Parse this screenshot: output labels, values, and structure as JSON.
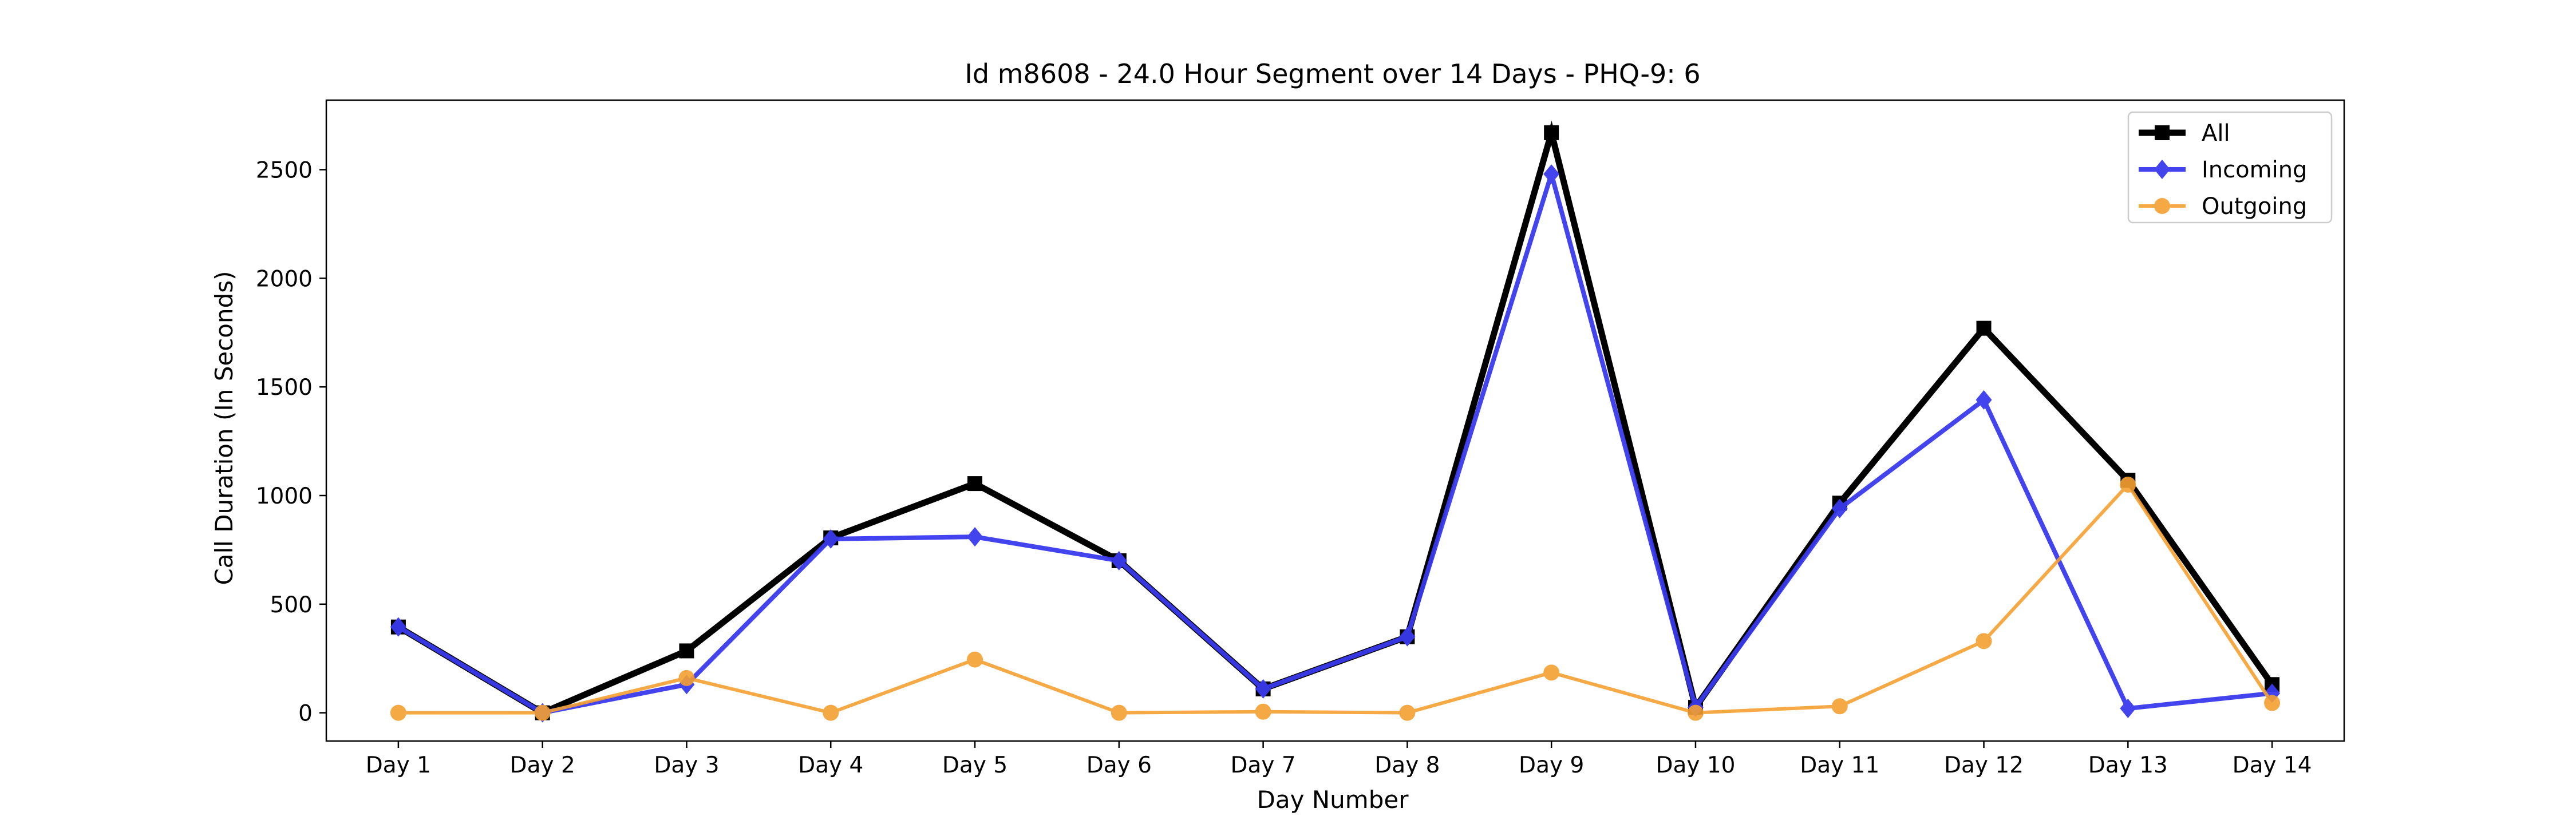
{
  "chart_data": {
    "type": "line",
    "title": "Id m8608 - 24.0 Hour Segment over 14 Days - PHQ-9: 6",
    "xlabel": "Day Number",
    "ylabel": "Call Duration (In Seconds)",
    "categories": [
      "Day 1",
      "Day 2",
      "Day 3",
      "Day 4",
      "Day 5",
      "Day 6",
      "Day 7",
      "Day 8",
      "Day 9",
      "Day 10",
      "Day 11",
      "Day 12",
      "Day 13",
      "Day 14"
    ],
    "ylim": [
      -130,
      2820
    ],
    "yticks": [
      0,
      500,
      1000,
      1500,
      2000,
      2500
    ],
    "grid": false,
    "legend_position": "top-right",
    "series": [
      {
        "name": "All",
        "color": "#000000",
        "marker": "square",
        "values": [
          395,
          0,
          285,
          805,
          1055,
          700,
          110,
          350,
          2670,
          25,
          965,
          1770,
          1070,
          130
        ]
      },
      {
        "name": "Incoming",
        "color": "#3a3aee",
        "marker": "diamond",
        "values": [
          395,
          0,
          130,
          800,
          810,
          700,
          110,
          350,
          2480,
          25,
          940,
          1440,
          20,
          90
        ]
      },
      {
        "name": "Outgoing",
        "color": "#f5a031",
        "marker": "circle",
        "values": [
          0,
          0,
          160,
          0,
          245,
          0,
          5,
          0,
          185,
          0,
          30,
          330,
          1050,
          45
        ]
      }
    ]
  }
}
